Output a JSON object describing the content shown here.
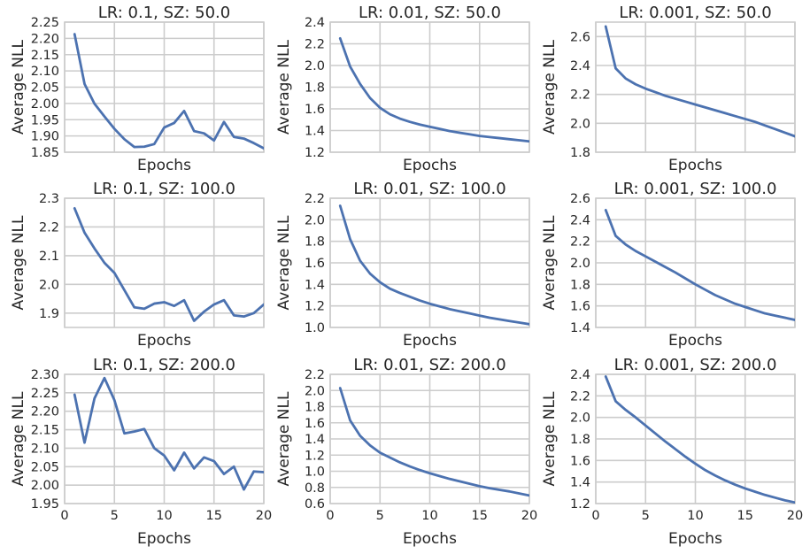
{
  "colors": {
    "line": "#4c72b0",
    "grid": "#cccccc",
    "text": "#262626",
    "background": "#ffffff"
  },
  "chart_data": [
    {
      "type": "line",
      "title": "LR: 0.1, SZ: 50.0",
      "xlabel": "Epochs",
      "ylabel": "Average NLL",
      "xlim": [
        0,
        20
      ],
      "ylim": [
        1.85,
        2.25
      ],
      "xticks": [
        0,
        5,
        10,
        15,
        20
      ],
      "show_xticklabels": false,
      "yticks": [
        1.85,
        1.9,
        1.95,
        2.0,
        2.05,
        2.1,
        2.15,
        2.2,
        2.25
      ],
      "yticklabels": [
        "1.85",
        "1.90",
        "1.95",
        "2.00",
        "2.05",
        "2.10",
        "2.15",
        "2.20",
        "2.25"
      ],
      "grid": true,
      "x": [
        1,
        2,
        3,
        4,
        5,
        6,
        7,
        8,
        9,
        10,
        11,
        12,
        13,
        14,
        15,
        16,
        17,
        18,
        19,
        20
      ],
      "y": [
        2.213,
        2.06,
        1.999,
        1.96,
        1.922,
        1.89,
        1.866,
        1.867,
        1.875,
        1.926,
        1.94,
        1.977,
        1.915,
        1.908,
        1.886,
        1.943,
        1.897,
        1.892,
        1.878,
        1.862
      ]
    },
    {
      "type": "line",
      "title": "LR: 0.01, SZ: 50.0",
      "xlabel": "Epochs",
      "ylabel": "Average NLL",
      "xlim": [
        0,
        20
      ],
      "ylim": [
        1.2,
        2.4
      ],
      "xticks": [
        0,
        5,
        10,
        15,
        20
      ],
      "show_xticklabels": false,
      "yticks": [
        1.2,
        1.4,
        1.6,
        1.8,
        2.0,
        2.2,
        2.4
      ],
      "yticklabels": [
        "1.2",
        "1.4",
        "1.6",
        "1.8",
        "2.0",
        "2.2",
        "2.4"
      ],
      "grid": true,
      "x": [
        1,
        2,
        3,
        4,
        5,
        6,
        7,
        8,
        9,
        10,
        11,
        12,
        13,
        14,
        15,
        16,
        17,
        18,
        19,
        20
      ],
      "y": [
        2.25,
        1.99,
        1.83,
        1.7,
        1.61,
        1.55,
        1.51,
        1.48,
        1.455,
        1.435,
        1.415,
        1.395,
        1.38,
        1.365,
        1.35,
        1.34,
        1.33,
        1.32,
        1.31,
        1.3
      ]
    },
    {
      "type": "line",
      "title": "LR: 0.001, SZ: 50.0",
      "xlabel": "Epochs",
      "ylabel": "Average NLL",
      "xlim": [
        0,
        20
      ],
      "ylim": [
        1.8,
        2.7
      ],
      "xticks": [
        0,
        5,
        10,
        15,
        20
      ],
      "show_xticklabels": false,
      "yticks": [
        1.8,
        2.0,
        2.2,
        2.4,
        2.6
      ],
      "yticklabels": [
        "1.8",
        "2.0",
        "2.2",
        "2.4",
        "2.6"
      ],
      "grid": true,
      "x": [
        1,
        2,
        3,
        4,
        5,
        6,
        7,
        8,
        9,
        10,
        11,
        12,
        13,
        14,
        15,
        16,
        17,
        18,
        19,
        20
      ],
      "y": [
        2.67,
        2.38,
        2.31,
        2.27,
        2.24,
        2.215,
        2.19,
        2.17,
        2.15,
        2.13,
        2.11,
        2.09,
        2.07,
        2.05,
        2.03,
        2.01,
        1.985,
        1.96,
        1.935,
        1.91
      ]
    },
    {
      "type": "line",
      "title": "LR: 0.1, SZ: 100.0",
      "xlabel": "Epochs",
      "ylabel": "Average NLL",
      "xlim": [
        0,
        20
      ],
      "ylim": [
        1.85,
        2.3
      ],
      "xticks": [
        0,
        5,
        10,
        15,
        20
      ],
      "show_xticklabels": false,
      "yticks": [
        1.9,
        2.0,
        2.1,
        2.2,
        2.3
      ],
      "yticklabels": [
        "1.9",
        "2.0",
        "2.1",
        "2.2",
        "2.3"
      ],
      "grid": true,
      "x": [
        1,
        2,
        3,
        4,
        5,
        6,
        7,
        8,
        9,
        10,
        11,
        12,
        13,
        14,
        15,
        16,
        17,
        18,
        19,
        20
      ],
      "y": [
        2.265,
        2.18,
        2.125,
        2.075,
        2.04,
        1.98,
        1.92,
        1.915,
        1.933,
        1.938,
        1.925,
        1.945,
        1.873,
        1.905,
        1.93,
        1.945,
        1.892,
        1.888,
        1.9,
        1.93
      ]
    },
    {
      "type": "line",
      "title": "LR: 0.01, SZ: 100.0",
      "xlabel": "Epochs",
      "ylabel": "Average NLL",
      "xlim": [
        0,
        20
      ],
      "ylim": [
        1.0,
        2.2
      ],
      "xticks": [
        0,
        5,
        10,
        15,
        20
      ],
      "show_xticklabels": false,
      "yticks": [
        1.0,
        1.2,
        1.4,
        1.6,
        1.8,
        2.0,
        2.2
      ],
      "yticklabels": [
        "1.0",
        "1.2",
        "1.4",
        "1.6",
        "1.8",
        "2.0",
        "2.2"
      ],
      "grid": true,
      "x": [
        1,
        2,
        3,
        4,
        5,
        6,
        7,
        8,
        9,
        10,
        11,
        12,
        13,
        14,
        15,
        16,
        17,
        18,
        19,
        20
      ],
      "y": [
        2.13,
        1.82,
        1.62,
        1.5,
        1.42,
        1.36,
        1.32,
        1.285,
        1.25,
        1.22,
        1.195,
        1.17,
        1.15,
        1.13,
        1.11,
        1.09,
        1.075,
        1.06,
        1.045,
        1.03
      ]
    },
    {
      "type": "line",
      "title": "LR: 0.001, SZ: 100.0",
      "xlabel": "Epochs",
      "ylabel": "Average NLL",
      "xlim": [
        0,
        20
      ],
      "ylim": [
        1.4,
        2.6
      ],
      "xticks": [
        0,
        5,
        10,
        15,
        20
      ],
      "show_xticklabels": false,
      "yticks": [
        1.4,
        1.6,
        1.8,
        2.0,
        2.2,
        2.4,
        2.6
      ],
      "yticklabels": [
        "1.4",
        "1.6",
        "1.8",
        "2.0",
        "2.2",
        "2.4",
        "2.6"
      ],
      "grid": true,
      "x": [
        1,
        2,
        3,
        4,
        5,
        6,
        7,
        8,
        9,
        10,
        11,
        12,
        13,
        14,
        15,
        16,
        17,
        18,
        19,
        20
      ],
      "y": [
        2.49,
        2.25,
        2.17,
        2.11,
        2.06,
        2.01,
        1.96,
        1.91,
        1.855,
        1.8,
        1.75,
        1.7,
        1.66,
        1.62,
        1.59,
        1.56,
        1.53,
        1.51,
        1.49,
        1.47
      ]
    },
    {
      "type": "line",
      "title": "LR: 0.1, SZ: 200.0",
      "xlabel": "Epochs",
      "ylabel": "Average NLL",
      "xlim": [
        0,
        20
      ],
      "ylim": [
        1.95,
        2.3
      ],
      "xticks": [
        0,
        5,
        10,
        15,
        20
      ],
      "xticklabels": [
        "0",
        "5",
        "10",
        "15",
        "20"
      ],
      "show_xticklabels": true,
      "yticks": [
        1.95,
        2.0,
        2.05,
        2.1,
        2.15,
        2.2,
        2.25,
        2.3
      ],
      "yticklabels": [
        "1.95",
        "2.00",
        "2.05",
        "2.10",
        "2.15",
        "2.20",
        "2.25",
        "2.30"
      ],
      "grid": true,
      "x": [
        1,
        2,
        3,
        4,
        5,
        6,
        7,
        8,
        9,
        10,
        11,
        12,
        13,
        14,
        15,
        16,
        17,
        18,
        19,
        20
      ],
      "y": [
        2.245,
        2.115,
        2.235,
        2.29,
        2.23,
        2.14,
        2.145,
        2.152,
        2.1,
        2.08,
        2.04,
        2.088,
        2.045,
        2.075,
        2.065,
        2.03,
        2.05,
        1.988,
        2.037,
        2.035
      ]
    },
    {
      "type": "line",
      "title": "LR: 0.01, SZ: 200.0",
      "xlabel": "Epochs",
      "ylabel": "Average NLL",
      "xlim": [
        0,
        20
      ],
      "ylim": [
        0.6,
        2.2
      ],
      "xticks": [
        0,
        5,
        10,
        15,
        20
      ],
      "xticklabels": [
        "0",
        "5",
        "10",
        "15",
        "20"
      ],
      "show_xticklabels": true,
      "yticks": [
        0.6,
        0.8,
        1.0,
        1.2,
        1.4,
        1.6,
        1.8,
        2.0,
        2.2
      ],
      "yticklabels": [
        "0.6",
        "0.8",
        "1.0",
        "1.2",
        "1.4",
        "1.6",
        "1.8",
        "2.0",
        "2.2"
      ],
      "grid": true,
      "x": [
        1,
        2,
        3,
        4,
        5,
        6,
        7,
        8,
        9,
        10,
        11,
        12,
        13,
        14,
        15,
        16,
        17,
        18,
        19,
        20
      ],
      "y": [
        2.03,
        1.63,
        1.44,
        1.32,
        1.23,
        1.17,
        1.11,
        1.06,
        1.015,
        0.975,
        0.94,
        0.905,
        0.875,
        0.845,
        0.815,
        0.79,
        0.77,
        0.75,
        0.725,
        0.7
      ]
    },
    {
      "type": "line",
      "title": "LR: 0.001, SZ: 200.0",
      "xlabel": "Epochs",
      "ylabel": "Average NLL",
      "xlim": [
        0,
        20
      ],
      "ylim": [
        1.2,
        2.4
      ],
      "xticks": [
        0,
        5,
        10,
        15,
        20
      ],
      "xticklabels": [
        "0",
        "5",
        "10",
        "15",
        "20"
      ],
      "show_xticklabels": true,
      "yticks": [
        1.2,
        1.4,
        1.6,
        1.8,
        2.0,
        2.2,
        2.4
      ],
      "yticklabels": [
        "1.2",
        "1.4",
        "1.6",
        "1.8",
        "2.0",
        "2.2",
        "2.4"
      ],
      "grid": true,
      "x": [
        1,
        2,
        3,
        4,
        5,
        6,
        7,
        8,
        9,
        10,
        11,
        12,
        13,
        14,
        15,
        16,
        17,
        18,
        19,
        20
      ],
      "y": [
        2.38,
        2.15,
        2.07,
        2.0,
        1.925,
        1.85,
        1.775,
        1.705,
        1.635,
        1.57,
        1.51,
        1.46,
        1.415,
        1.375,
        1.34,
        1.31,
        1.28,
        1.255,
        1.23,
        1.21
      ]
    }
  ]
}
